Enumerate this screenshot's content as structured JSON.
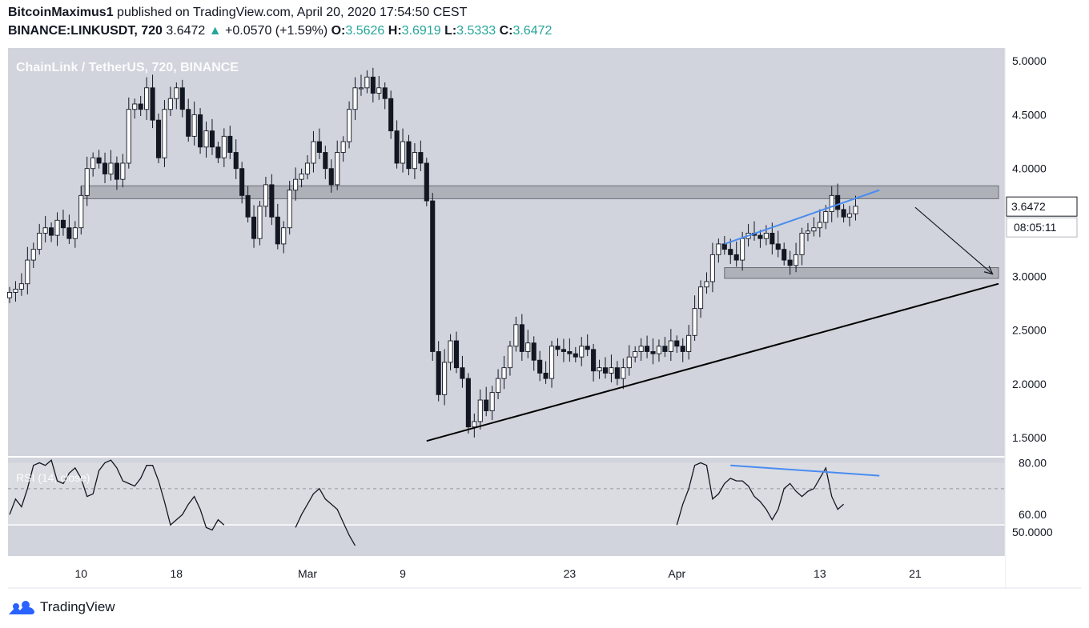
{
  "header": {
    "author": "BitcoinMaximus1",
    "published": "published on TradingView.com, April 20, 2020 17:54:50 CEST",
    "symbol": "BINANCE:LINKUSDT, 720",
    "last": "3.6472",
    "arrow": "▲",
    "change": "+0.0570 (+1.59%)",
    "open_label": "O:",
    "open": "3.5626",
    "high_label": "H:",
    "high": "3.6919",
    "low_label": "L:",
    "low": "3.5333",
    "close_label": "C:",
    "close": "3.6472"
  },
  "footer": {
    "brand": "TradingView"
  },
  "colors": {
    "plot_bg": "#d1d4dc",
    "candle_up": "#ffffff",
    "candle_down": "#131722",
    "trendline": "#000000",
    "divergence_line": "#4a8cf0",
    "zone": "#a3a6ad",
    "up_text": "#26a69a"
  },
  "chart_data": {
    "type": "candlestick",
    "title": "ChainLink / TetherUS, 720, BINANCE",
    "timeframe": "720",
    "ylim": [
      1.33,
      5.12
    ],
    "yticks": [
      "5.0000",
      "4.5000",
      "4.0000",
      "3.5000",
      "3.0000",
      "2.5000",
      "2.0000",
      "1.5000"
    ],
    "xticks": [
      {
        "label": "10",
        "i": 12
      },
      {
        "label": "18",
        "i": 28
      },
      {
        "label": "Mar",
        "i": 50
      },
      {
        "label": "9",
        "i": 66
      },
      {
        "label": "23",
        "i": 94
      },
      {
        "label": "Apr",
        "i": 112
      },
      {
        "label": "13",
        "i": 136
      },
      {
        "label": "21",
        "i": 152
      }
    ],
    "price_label": "3.6472",
    "countdown": "08:05:11",
    "closes": [
      2.85,
      2.88,
      2.93,
      3.15,
      3.25,
      3.4,
      3.45,
      3.38,
      3.52,
      3.45,
      3.35,
      3.45,
      3.75,
      4.0,
      4.1,
      4.05,
      3.95,
      4.05,
      3.9,
      4.05,
      4.55,
      4.6,
      4.55,
      4.75,
      4.45,
      4.1,
      4.55,
      4.65,
      4.75,
      4.55,
      4.3,
      4.5,
      4.2,
      4.35,
      4.2,
      4.1,
      4.3,
      4.15,
      4.0,
      3.75,
      3.55,
      3.35,
      3.65,
      3.85,
      3.55,
      3.3,
      3.45,
      3.8,
      3.9,
      3.95,
      4.05,
      4.25,
      4.15,
      4.0,
      3.85,
      4.15,
      4.25,
      4.55,
      4.75,
      4.75,
      4.85,
      4.7,
      4.75,
      4.65,
      4.35,
      4.05,
      4.25,
      4.0,
      4.15,
      4.05,
      3.7,
      2.3,
      1.9,
      2.2,
      2.4,
      2.15,
      2.05,
      1.6,
      1.65,
      1.85,
      1.75,
      1.92,
      2.05,
      2.15,
      2.35,
      2.55,
      2.3,
      2.38,
      2.22,
      2.1,
      2.05,
      2.35,
      2.32,
      2.3,
      2.28,
      2.25,
      2.35,
      2.32,
      2.12,
      2.15,
      2.1,
      2.15,
      2.05,
      2.15,
      2.25,
      2.3,
      2.35,
      2.3,
      2.28,
      2.35,
      2.3,
      2.4,
      2.35,
      2.3,
      2.45,
      2.7,
      2.9,
      2.95,
      3.2,
      3.3,
      3.25,
      3.2,
      3.15,
      3.35,
      3.4,
      3.38,
      3.35,
      3.4,
      3.3,
      3.25,
      3.15,
      3.1,
      3.2,
      3.4,
      3.42,
      3.45,
      3.5,
      3.6,
      3.75,
      3.62,
      3.55,
      3.58,
      3.65
    ],
    "zones": [
      {
        "from_i": 12,
        "to_i": 166,
        "low": 3.72,
        "high": 3.84
      },
      {
        "from_i": 120,
        "to_i": 166,
        "low": 2.98,
        "high": 3.08
      }
    ],
    "trendline": {
      "from": {
        "i": 70,
        "value": 1.47
      },
      "to": {
        "i": 166,
        "value": 2.93
      }
    },
    "divergence_price": {
      "from": {
        "i": 120,
        "value": 3.3
      },
      "to": {
        "i": 146,
        "value": 3.8
      }
    },
    "projection_arrow": {
      "from": {
        "i": 152,
        "value": 3.64
      },
      "to": {
        "i": 165,
        "value": 3.02
      }
    },
    "rsi": {
      "label": "RSI (14, close)",
      "ylim": [
        44,
        82
      ],
      "yticks": [
        "80.00",
        "60.00"
      ],
      "band_ticks": [
        "50.0000"
      ],
      "overbought_line": 70,
      "series": [
        {
          "from_i": 0,
          "values": [
            60,
            66,
            63,
            70,
            79,
            80,
            79,
            81,
            73,
            72,
            76,
            78,
            74,
            67,
            68,
            77,
            80,
            81,
            78,
            73,
            72,
            71,
            74,
            79,
            79,
            73,
            65,
            56,
            58,
            60,
            64,
            67,
            62,
            55,
            54,
            58,
            56
          ]
        },
        {
          "from_i": 48,
          "values": [
            55,
            60,
            64,
            68,
            70,
            66,
            64,
            62,
            57,
            52,
            48
          ]
        },
        {
          "from_i": 112,
          "values": [
            56,
            64,
            70,
            79,
            80,
            79,
            66,
            68,
            72,
            74,
            73,
            73,
            71,
            67,
            65,
            62,
            58,
            62,
            70,
            72,
            69,
            67,
            69,
            70,
            74,
            78,
            67,
            62,
            64
          ]
        }
      ],
      "divergence": {
        "from": {
          "i": 121,
          "value": 79
        },
        "to": {
          "i": 146,
          "value": 75
        }
      }
    }
  }
}
